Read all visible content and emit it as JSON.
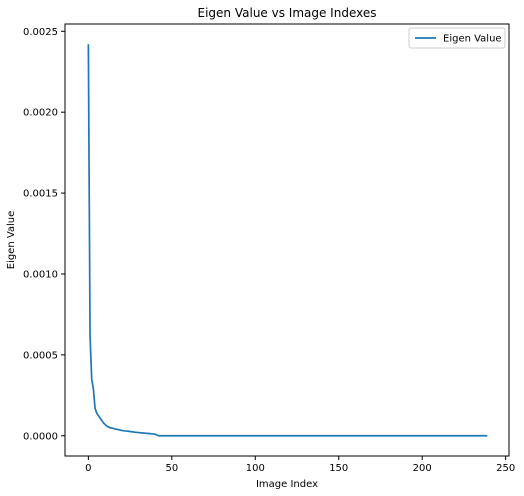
{
  "chart_data": {
    "type": "line",
    "title": "Eigen Value vs Image Indexes",
    "xlabel": "Image Index",
    "ylabel": "Eigen Value",
    "xlim": [
      -14,
      252
    ],
    "ylim": [
      -0.000125,
      0.002545
    ],
    "xticks": [
      "0",
      "50",
      "100",
      "150",
      "200",
      "250"
    ],
    "xtick_values": [
      0,
      50,
      100,
      150,
      200,
      250
    ],
    "yticks": [
      "0.0000",
      "0.0005",
      "0.0010",
      "0.0015",
      "0.0020",
      "0.0025"
    ],
    "ytick_values": [
      0,
      0.0005,
      0.001,
      0.0015,
      0.002,
      0.0025
    ],
    "grid": false,
    "legend_position": "top-right",
    "series": [
      {
        "name": "Eigen Value",
        "color": "#1f77b4",
        "x": [
          0,
          1,
          2,
          3,
          4,
          5,
          6,
          7,
          8,
          9,
          10,
          11,
          12,
          13,
          14,
          15,
          16,
          17,
          18,
          19,
          20,
          22,
          24,
          26,
          28,
          30,
          32,
          34,
          36,
          38,
          40,
          42,
          45,
          50,
          100,
          150,
          200,
          239
        ],
        "y": [
          0.00242,
          0.00062,
          0.00035,
          0.00029,
          0.00017,
          0.00014,
          0.000125,
          0.00011,
          9.5e-05,
          8e-05,
          7e-05,
          6e-05,
          5.5e-05,
          5e-05,
          4.8e-05,
          4.5e-05,
          4.2e-05,
          4e-05,
          3.8e-05,
          3.5e-05,
          3.3e-05,
          3e-05,
          2.8e-05,
          2.5e-05,
          2.2e-05,
          2e-05,
          1.8e-05,
          1.6e-05,
          1.4e-05,
          1.2e-05,
          1e-05,
          0.0,
          0.0,
          0.0,
          0.0,
          0.0,
          0.0,
          0.0
        ]
      }
    ]
  }
}
